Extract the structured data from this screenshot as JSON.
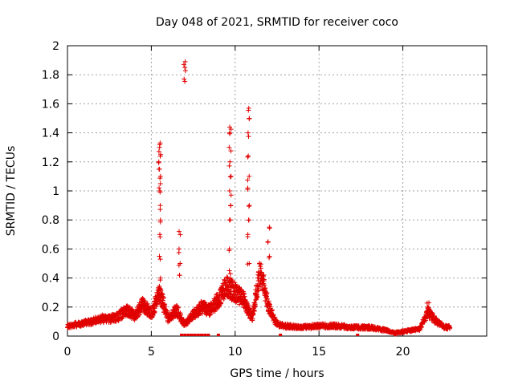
{
  "chart_data": {
    "type": "scatter",
    "title": "Day 048 of 2021, SRMTID for receiver coco",
    "xlabel": "GPS time / hours",
    "ylabel": "SRMTID / TECUs",
    "xlim": [
      0,
      25
    ],
    "ylim": [
      0,
      2
    ],
    "x_ticks": [
      0,
      5,
      10,
      15,
      20
    ],
    "x_tick_labels": [
      "0",
      "5",
      "10",
      "15",
      "20"
    ],
    "y_ticks": [
      0,
      0.2,
      0.4,
      0.6,
      0.8,
      1,
      1.2,
      1.4,
      1.6,
      1.8,
      2
    ],
    "y_tick_labels": [
      "0",
      "0.2",
      "0.4",
      "0.6",
      "0.8",
      "1",
      "1.2",
      "1.4",
      "1.6",
      "1.8",
      "2"
    ],
    "grid": true,
    "marker": "+",
    "color": "#e00000",
    "baseline_profile": [
      [
        0.0,
        0.07
      ],
      [
        0.5,
        0.08
      ],
      [
        1.0,
        0.09
      ],
      [
        1.5,
        0.1
      ],
      [
        2.0,
        0.12
      ],
      [
        2.5,
        0.12
      ],
      [
        3.0,
        0.13
      ],
      [
        3.5,
        0.18
      ],
      [
        4.0,
        0.14
      ],
      [
        4.5,
        0.22
      ],
      [
        5.0,
        0.15
      ],
      [
        5.5,
        0.3
      ],
      [
        6.0,
        0.12
      ],
      [
        6.5,
        0.18
      ],
      [
        7.0,
        0.08
      ],
      [
        7.5,
        0.15
      ],
      [
        8.0,
        0.2
      ],
      [
        8.5,
        0.18
      ],
      [
        9.0,
        0.25
      ],
      [
        9.5,
        0.35
      ],
      [
        10.0,
        0.3
      ],
      [
        10.5,
        0.25
      ],
      [
        11.0,
        0.12
      ],
      [
        11.5,
        0.45
      ],
      [
        12.0,
        0.2
      ],
      [
        12.5,
        0.08
      ],
      [
        13.0,
        0.07
      ],
      [
        14.0,
        0.06
      ],
      [
        15.0,
        0.07
      ],
      [
        16.0,
        0.07
      ],
      [
        17.0,
        0.06
      ],
      [
        18.0,
        0.06
      ],
      [
        19.0,
        0.04
      ],
      [
        19.5,
        0.02
      ],
      [
        20.0,
        0.03
      ],
      [
        21.0,
        0.05
      ],
      [
        21.5,
        0.16
      ],
      [
        22.0,
        0.1
      ],
      [
        22.5,
        0.06
      ],
      [
        22.8,
        0.06
      ]
    ],
    "spikes": [
      {
        "x": 5.5,
        "y": [
          0.4,
          0.55,
          0.7,
          0.8,
          0.9,
          1.0,
          1.05,
          1.1,
          1.15,
          1.2,
          1.25,
          1.3,
          1.33
        ]
      },
      {
        "x": 6.7,
        "y": [
          0.42,
          0.5,
          0.6,
          0.72
        ]
      },
      {
        "x": 7.0,
        "y": [
          1.77,
          1.85,
          1.89
        ]
      },
      {
        "x": 9.7,
        "y": [
          0.45,
          0.6,
          0.8,
          0.9,
          1.0,
          1.1,
          1.2,
          1.3,
          1.4,
          1.44
        ]
      },
      {
        "x": 10.8,
        "y": [
          0.5,
          0.7,
          0.8,
          0.9,
          1.02,
          1.1,
          1.24,
          1.4,
          1.5,
          1.57
        ]
      },
      {
        "x": 12.0,
        "y": [
          0.55,
          0.65,
          0.75
        ]
      },
      {
        "x": 21.5,
        "y": [
          0.2,
          0.23
        ]
      }
    ],
    "zero_points_x": [
      6.8,
      7.0,
      7.2,
      7.4,
      7.6,
      7.8,
      8.0,
      8.2,
      8.4,
      9.0,
      12.7,
      17.3
    ]
  }
}
